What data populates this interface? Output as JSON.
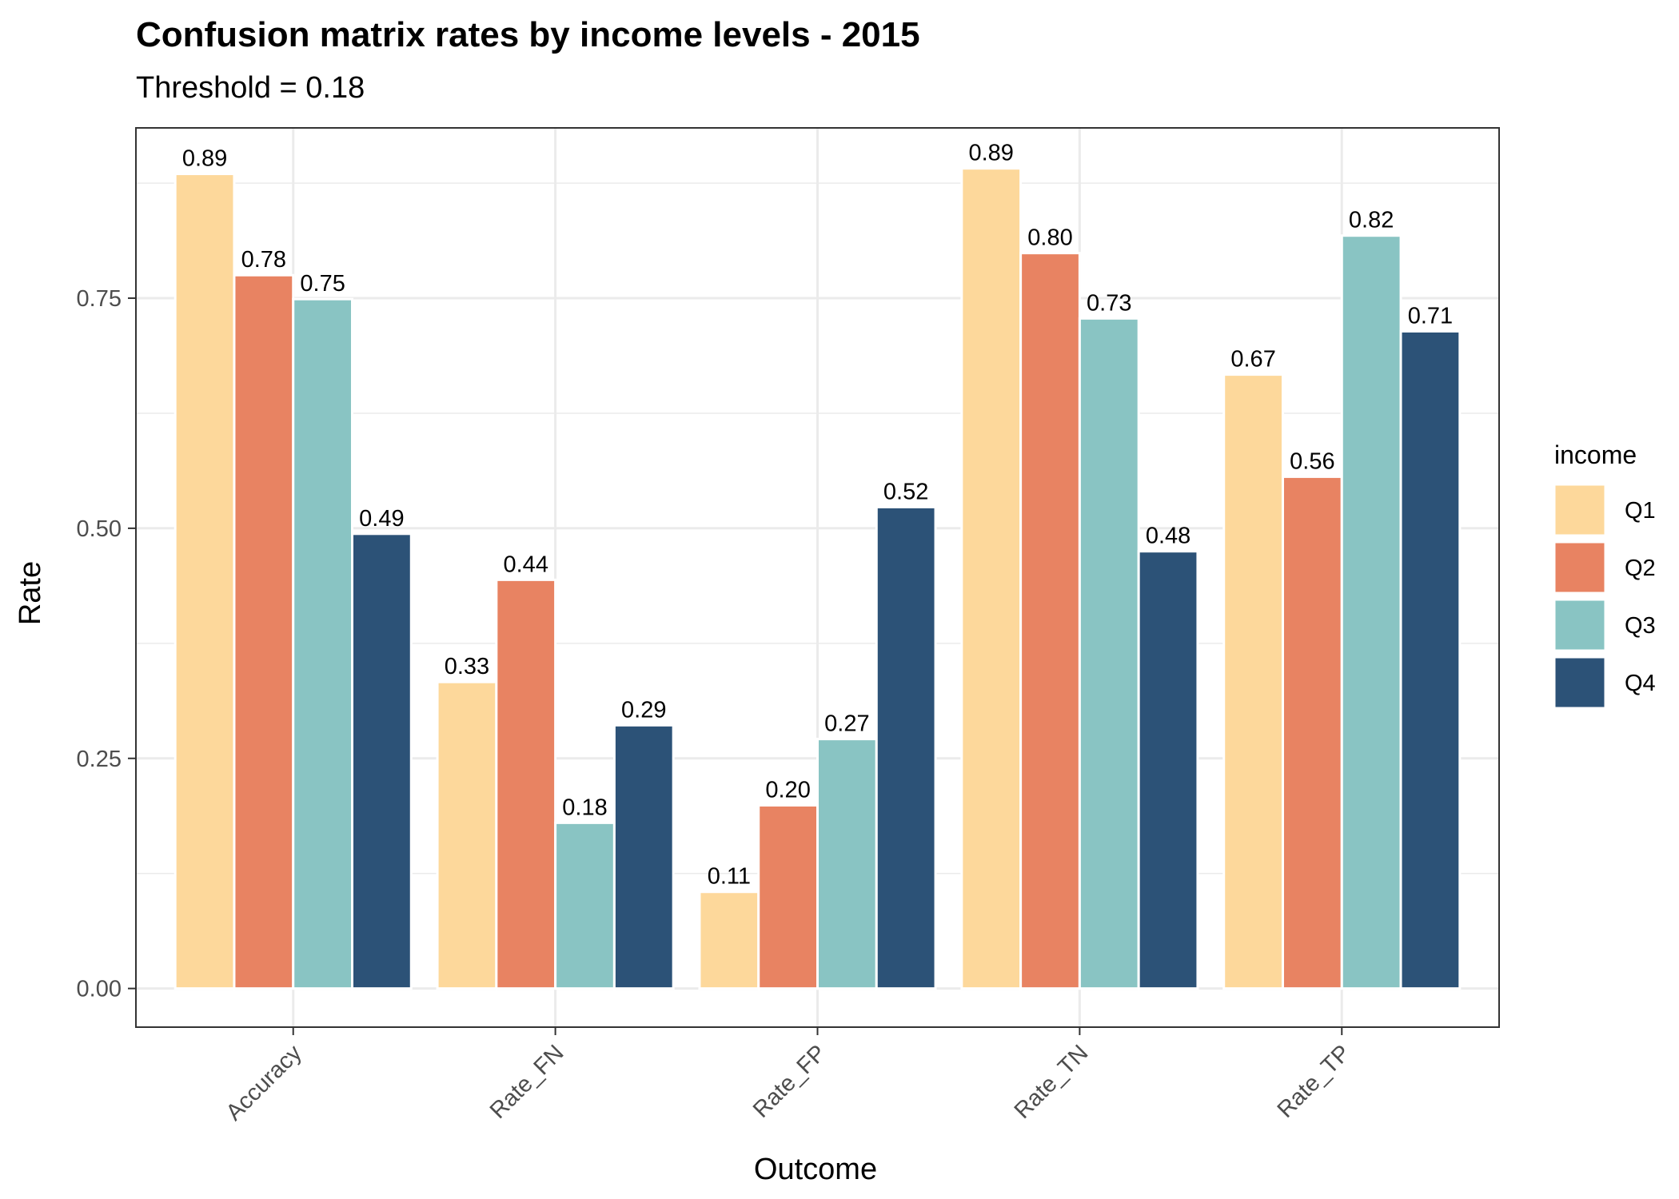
{
  "chart_data": {
    "type": "bar",
    "title": "Confusion matrix rates by income levels - 2015",
    "subtitle": "Threshold = 0.18",
    "xlabel": "Outcome",
    "ylabel": "Rate",
    "categories": [
      "Accuracy",
      "Rate_FN",
      "Rate_FP",
      "Rate_TN",
      "Rate_TP"
    ],
    "ylim": [
      -0.042,
      0.935
    ],
    "yticks": [
      0.0,
      0.25,
      0.5,
      0.75
    ],
    "ytick_labels": [
      "0.00",
      "0.25",
      "0.50",
      "0.75"
    ],
    "grid": true,
    "legend": {
      "title": "income",
      "position": "right"
    },
    "series": [
      {
        "name": "Q1",
        "color": "#FDD89B",
        "values": [
          0.885,
          0.333,
          0.105,
          0.891,
          0.667
        ],
        "labels": [
          "0.89",
          "0.33",
          "0.11",
          "0.89",
          "0.67"
        ]
      },
      {
        "name": "Q2",
        "color": "#E88362",
        "values": [
          0.775,
          0.444,
          0.199,
          0.799,
          0.556
        ],
        "labels": [
          "0.78",
          "0.44",
          "0.20",
          "0.80",
          "0.56"
        ]
      },
      {
        "name": "Q3",
        "color": "#89C4C3",
        "values": [
          0.749,
          0.18,
          0.271,
          0.728,
          0.818
        ],
        "labels": [
          "0.75",
          "0.18",
          "0.27",
          "0.73",
          "0.82"
        ]
      },
      {
        "name": "Q4",
        "color": "#2C5277",
        "values": [
          0.494,
          0.286,
          0.523,
          0.475,
          0.714
        ],
        "labels": [
          "0.49",
          "0.29",
          "0.52",
          "0.48",
          "0.71"
        ]
      }
    ]
  }
}
